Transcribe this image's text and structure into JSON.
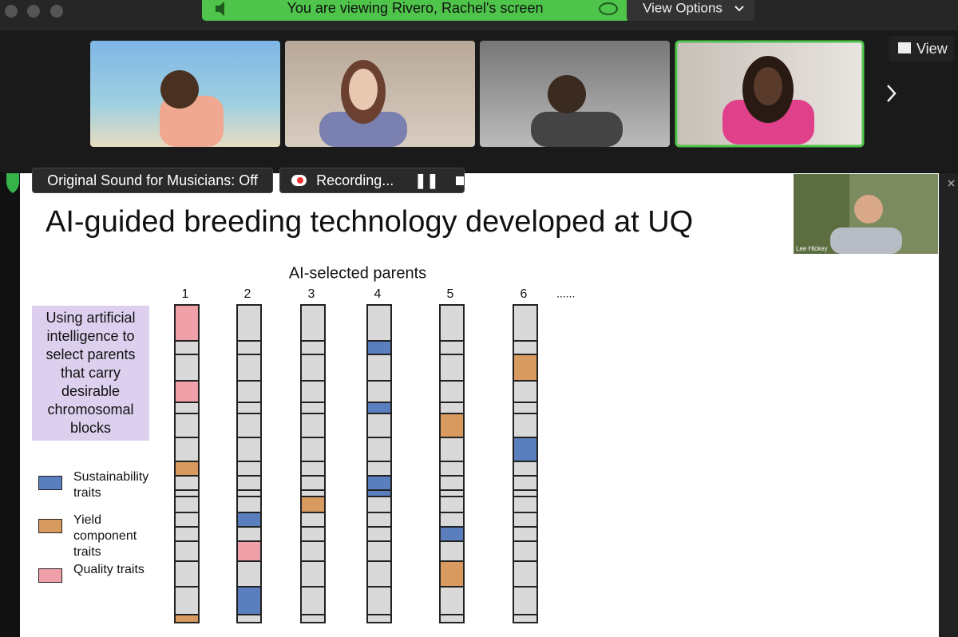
{
  "zoom": {
    "share_banner": "You are viewing Rivero, Rachel's screen",
    "view_options": "View Options",
    "view": "View",
    "sound_status": "Original Sound for Musicians: Off",
    "recording": "Recording...",
    "speaker_name": "Lee Hickey"
  },
  "slide": {
    "title": "AI-guided breeding technology developed at UQ",
    "columns_title": "AI-selected parents",
    "columns": [
      "1",
      "2",
      "3",
      "4",
      "5",
      "6"
    ],
    "ellipsis": "......",
    "callout": "Using artificial intelligence to select parents that carry desirable chromosomal blocks",
    "legend": [
      {
        "label": "Sustainability traits",
        "color": "#5b7fbe"
      },
      {
        "label": "Yield component traits",
        "color": "#d99a60"
      },
      {
        "label": "Quality traits",
        "color": "#f0a0a8"
      }
    ]
  }
}
